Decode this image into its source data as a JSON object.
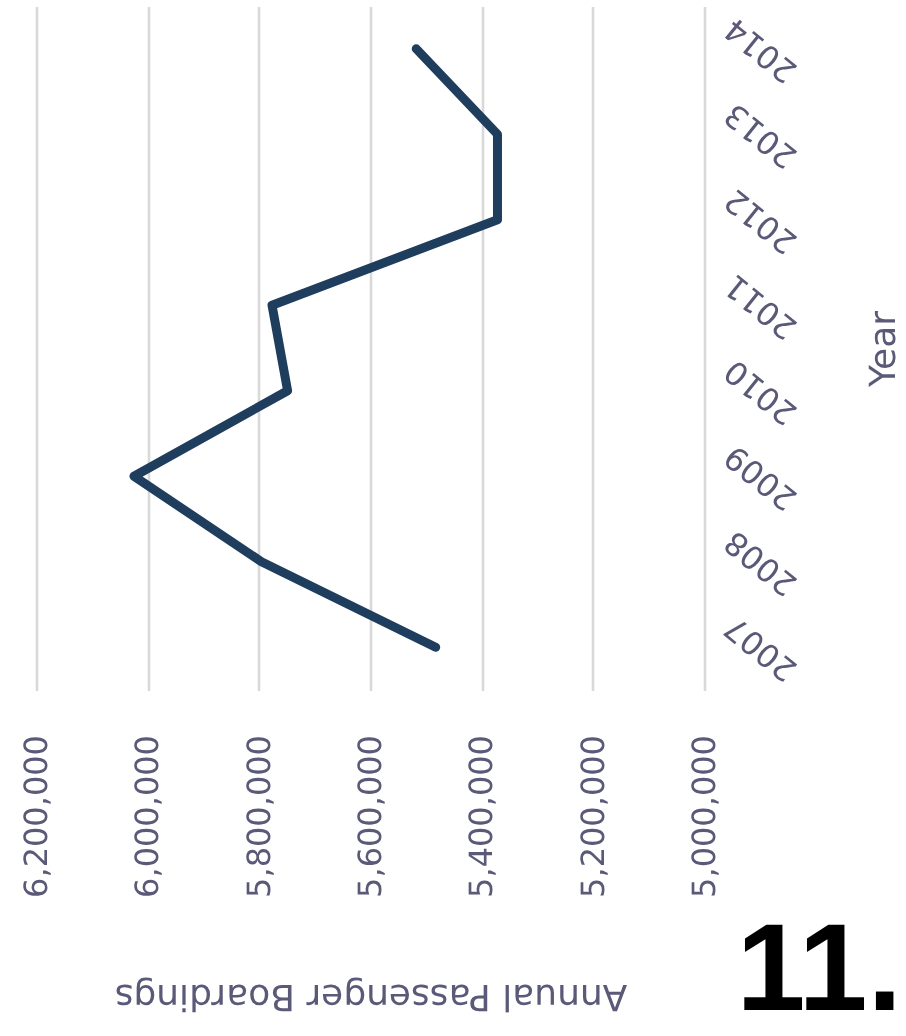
{
  "chart_data": {
    "type": "line",
    "xlabel": "Annual Passenger Boardings",
    "ylabel": "Year",
    "series": [
      {
        "color": "#1f3d5c",
        "x": [
          5482000,
          5795000,
          6024000,
          5748000,
          5776000,
          5371000,
          5371000,
          5517000
        ],
        "values": [
          2007,
          2008,
          2009,
          2010,
          2011,
          2012,
          2013,
          2014
        ]
      }
    ],
    "xlim": [
      6200000,
      5000000
    ],
    "xticks": [
      {
        "value": 6200000,
        "label": "6,200,000"
      },
      {
        "value": 6000000,
        "label": "6,000,000"
      },
      {
        "value": 5800000,
        "label": "5,800,000"
      },
      {
        "value": 5600000,
        "label": "5,600,000"
      },
      {
        "value": 5400000,
        "label": "5,400,000"
      },
      {
        "value": 5200000,
        "label": "5,200,000"
      },
      {
        "value": 5000000,
        "label": "5,000,000"
      }
    ],
    "ylim": [
      2006.5,
      2014.5
    ],
    "yticks": [
      2007,
      2008,
      2009,
      2010,
      2011,
      2012,
      2013,
      2014
    ],
    "grid": "x",
    "annotations": [
      "11."
    ]
  }
}
